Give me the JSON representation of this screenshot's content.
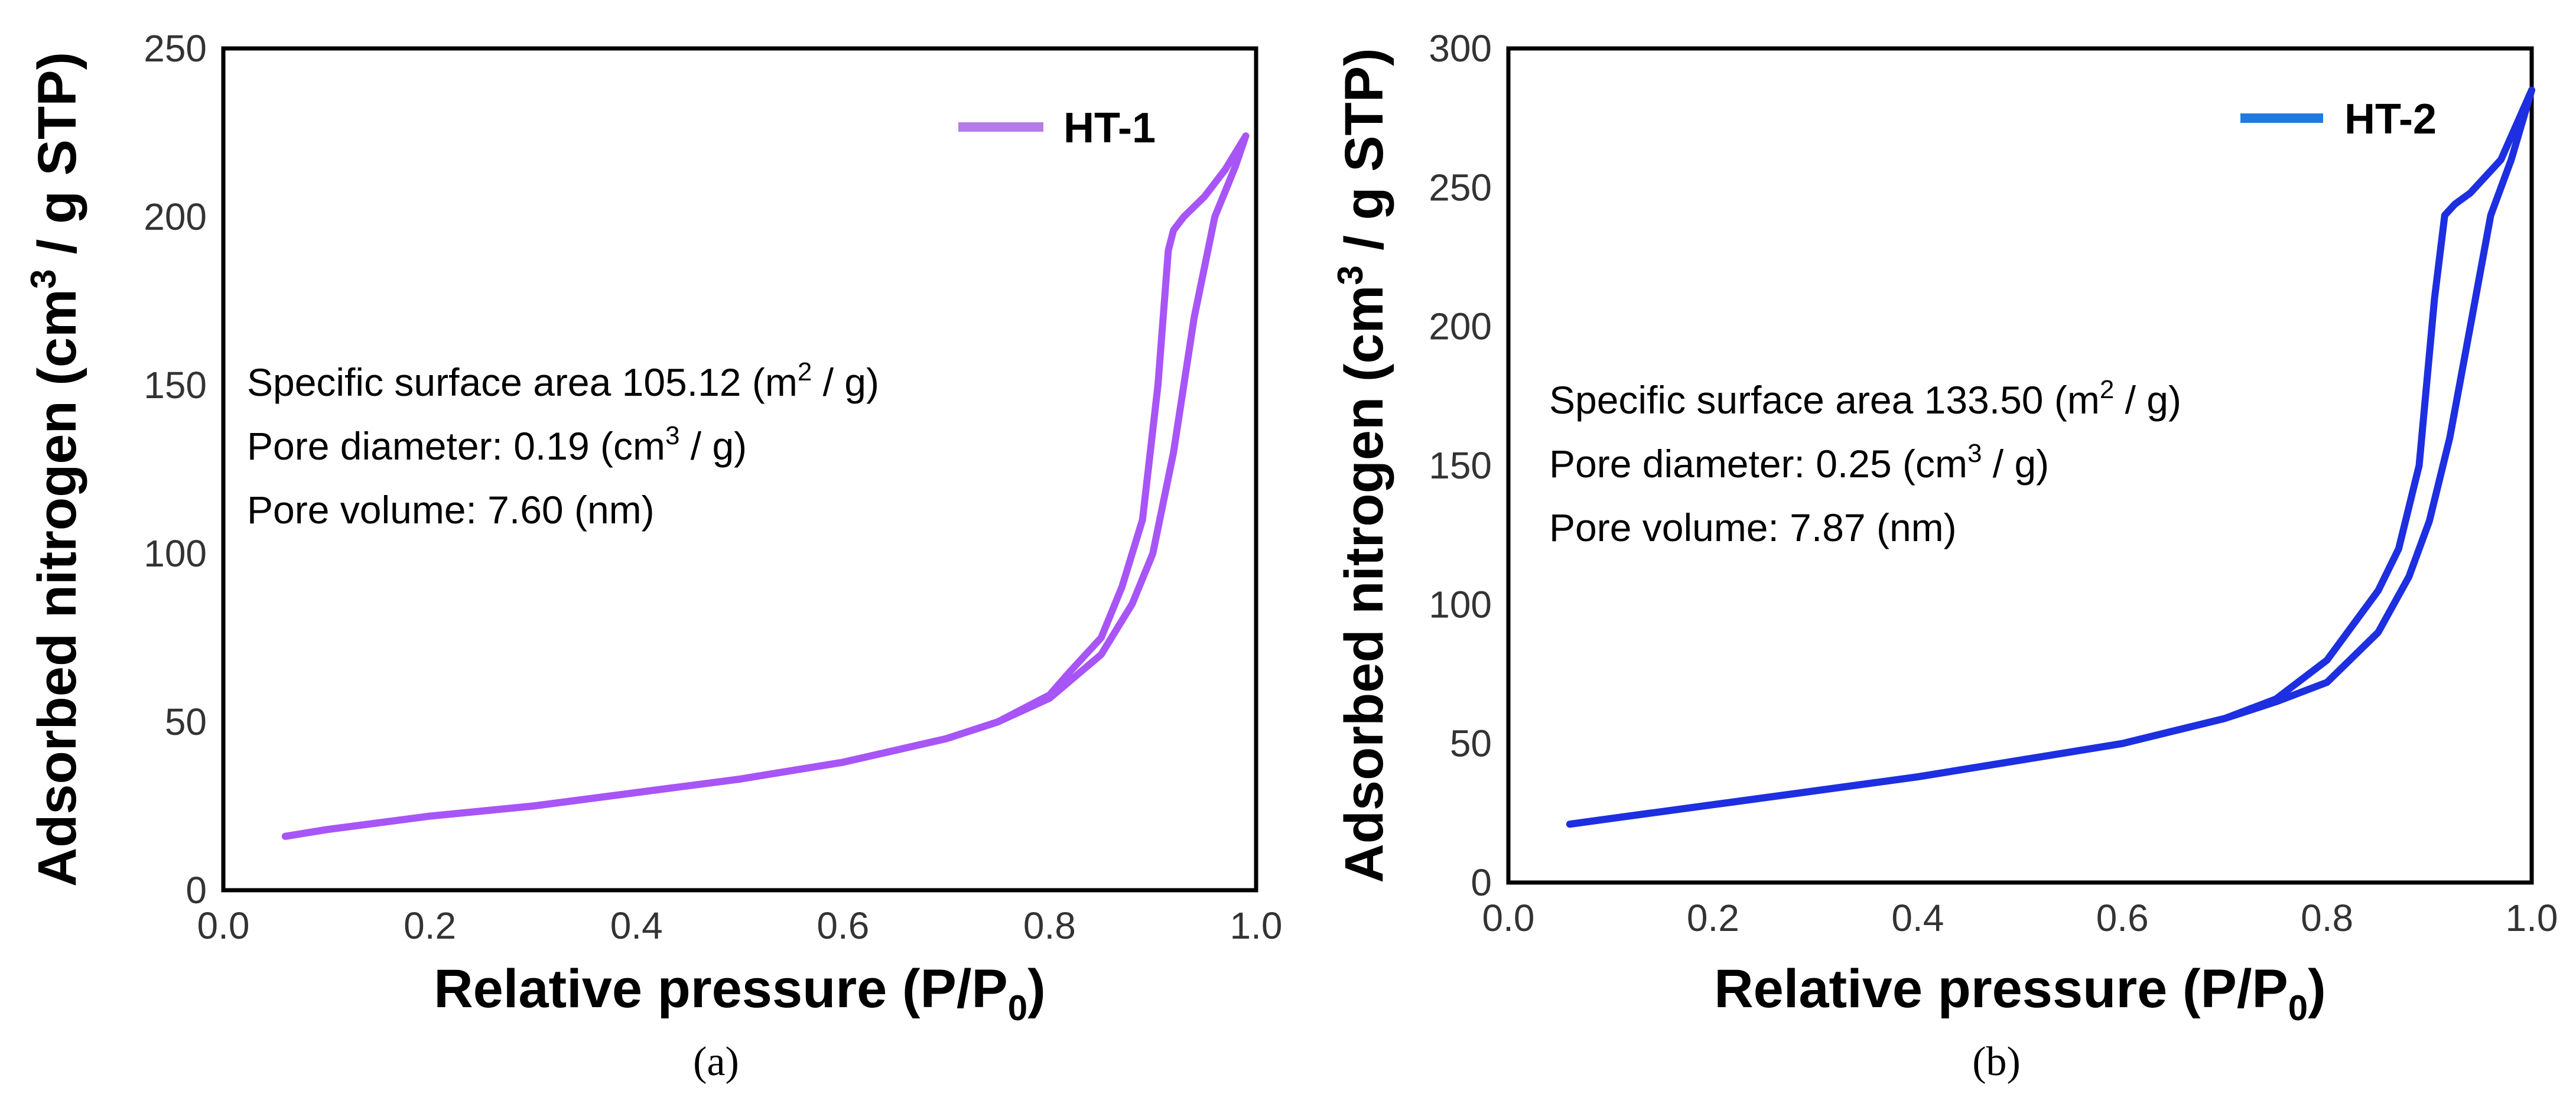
{
  "chart_data": [
    {
      "type": "line",
      "panel_label": "(a)",
      "xlabel": "Relative pressure (P/P0)",
      "ylabel": "Adsorbed nitrogen (cm3 / g STP)",
      "xlim": [
        0.0,
        1.0
      ],
      "ylim": [
        0,
        250
      ],
      "xticks": [
        0.0,
        0.2,
        0.4,
        0.6,
        0.8,
        1.0
      ],
      "xtick_labels": [
        "0.0",
        "0.2",
        "0.4",
        "0.6",
        "0.8",
        "1.0"
      ],
      "yticks": [
        0,
        50,
        100,
        150,
        200,
        250
      ],
      "ytick_labels": [
        "0",
        "50",
        "100",
        "150",
        "200",
        "250"
      ],
      "legend": "HT-1",
      "color": "#a855f7",
      "legend_color": "#b57ce6",
      "annotations": [
        {
          "prefix": "Specific surface area 105.12 (m",
          "sup": "2",
          "suffix": " / g)"
        },
        {
          "prefix": "Pore diameter: 0.19 (cm",
          "sup": "3",
          "suffix": " / g)"
        },
        {
          "prefix": "Pore volume: 7.60 (nm)",
          "sup": "",
          "suffix": ""
        }
      ],
      "series": [
        {
          "name": "adsorption",
          "x": [
            0.06,
            0.1,
            0.2,
            0.3,
            0.4,
            0.5,
            0.6,
            0.7,
            0.75,
            0.8,
            0.85,
            0.88,
            0.9,
            0.92,
            0.94,
            0.96,
            0.98,
            0.99
          ],
          "y": [
            16,
            18,
            22,
            25,
            29,
            33,
            38,
            45,
            50,
            57,
            70,
            85,
            100,
            130,
            170,
            200,
            215,
            224
          ]
        },
        {
          "name": "desorption",
          "x": [
            0.99,
            0.97,
            0.95,
            0.93,
            0.92,
            0.915,
            0.905,
            0.89,
            0.87,
            0.85,
            0.82,
            0.8,
            0.75,
            0.7,
            0.6,
            0.5,
            0.4,
            0.3,
            0.2,
            0.1,
            0.06
          ],
          "y": [
            224,
            214,
            206,
            200,
            196,
            190,
            150,
            110,
            90,
            75,
            65,
            58,
            50,
            45,
            38,
            33,
            29,
            25,
            22,
            18,
            16
          ]
        }
      ]
    },
    {
      "type": "line",
      "panel_label": "(b)",
      "xlabel": "Relative pressure (P/P0)",
      "ylabel": "Adsorbed nitrogen (cm3 / g STP)",
      "xlim": [
        0.0,
        1.0
      ],
      "ylim": [
        0,
        300
      ],
      "xticks": [
        0.0,
        0.2,
        0.4,
        0.6,
        0.8,
        1.0
      ],
      "xtick_labels": [
        "0.0",
        "0.2",
        "0.4",
        "0.6",
        "0.8",
        "1.0"
      ],
      "yticks": [
        0,
        50,
        100,
        150,
        200,
        250,
        300
      ],
      "ytick_labels": [
        "0",
        "50",
        "100",
        "150",
        "200",
        "250",
        "300"
      ],
      "legend": "HT-2",
      "color": "#1d2fe0",
      "legend_color": "#1f7ae0",
      "annotations": [
        {
          "prefix": "Specific surface area 133.50 (m",
          "sup": "2",
          "suffix": " / g)"
        },
        {
          "prefix": "Pore diameter: 0.25 (cm",
          "sup": "3",
          "suffix": " / g)"
        },
        {
          "prefix": "Pore volume: 7.87 (nm)",
          "sup": "",
          "suffix": ""
        }
      ],
      "series": [
        {
          "name": "adsorption",
          "x": [
            0.06,
            0.1,
            0.2,
            0.3,
            0.4,
            0.5,
            0.6,
            0.7,
            0.75,
            0.8,
            0.85,
            0.88,
            0.9,
            0.92,
            0.94,
            0.96,
            0.98,
            1.0
          ],
          "y": [
            21,
            23,
            28,
            33,
            38,
            44,
            50,
            59,
            65,
            72,
            90,
            110,
            130,
            160,
            200,
            240,
            260,
            285
          ]
        },
        {
          "name": "desorption",
          "x": [
            1.0,
            0.97,
            0.94,
            0.925,
            0.915,
            0.905,
            0.89,
            0.87,
            0.85,
            0.82,
            0.8,
            0.75,
            0.7,
            0.6,
            0.5,
            0.4,
            0.3,
            0.2,
            0.1,
            0.06
          ],
          "y": [
            285,
            260,
            248,
            244,
            240,
            210,
            150,
            120,
            105,
            90,
            80,
            66,
            59,
            50,
            44,
            38,
            33,
            28,
            23,
            21
          ]
        }
      ]
    }
  ]
}
